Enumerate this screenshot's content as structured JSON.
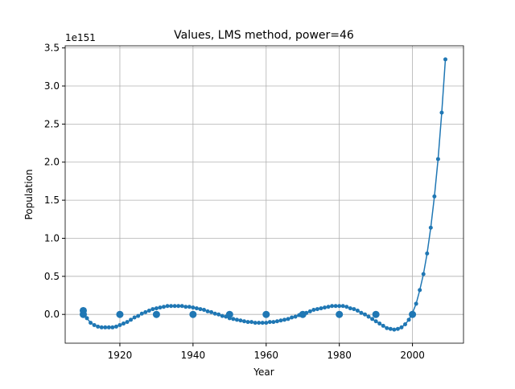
{
  "chart_data": {
    "type": "line",
    "title": "Values, LMS method, power=46",
    "x_label": "Year",
    "y_label": "Population",
    "y_offset_label": "1e151",
    "xlim": [
      1905.05,
      2013.95
    ],
    "ylim": [
      -0.378,
      3.528
    ],
    "xticks": [
      1920,
      1940,
      1960,
      1980,
      2000
    ],
    "yticks": [
      {
        "value": 0,
        "label": "0.0"
      },
      {
        "value": 0.5,
        "label": "0.5"
      },
      {
        "value": 1,
        "label": "1.0"
      },
      {
        "value": 1.5,
        "label": "1.5"
      },
      {
        "value": 2,
        "label": "2.0"
      },
      {
        "value": 2.5,
        "label": "2.5"
      },
      {
        "value": 3,
        "label": "3.0"
      },
      {
        "value": 3.5,
        "label": "3.5"
      }
    ],
    "grid": true,
    "series": [
      {
        "color": "#1f77b4",
        "style": "line",
        "x": [
          1910,
          1911,
          1912,
          1913,
          1914,
          1915,
          1916,
          1917,
          1918,
          1919,
          1920,
          1921,
          1922,
          1923,
          1924,
          1925,
          1926,
          1927,
          1928,
          1929,
          1930,
          1931,
          1932,
          1933,
          1934,
          1935,
          1936,
          1937,
          1938,
          1939,
          1940,
          1941,
          1942,
          1943,
          1944,
          1945,
          1946,
          1947,
          1948,
          1949,
          1950,
          1951,
          1952,
          1953,
          1954,
          1955,
          1956,
          1957,
          1958,
          1959,
          1960,
          1961,
          1962,
          1963,
          1964,
          1965,
          1966,
          1967,
          1968,
          1969,
          1970,
          1971,
          1972,
          1973,
          1974,
          1975,
          1976,
          1977,
          1978,
          1979,
          1980,
          1981,
          1982,
          1983,
          1984,
          1985,
          1986,
          1987,
          1988,
          1989,
          1990,
          1991,
          1992,
          1993,
          1994,
          1995,
          1996,
          1997,
          1998,
          1999,
          2000,
          2001,
          2002,
          2003,
          2004,
          2005,
          2006,
          2007,
          2008,
          2009
        ],
        "values": [
          0.04,
          -0.05,
          -0.11,
          -0.14,
          -0.16,
          -0.17,
          -0.17,
          -0.17,
          -0.17,
          -0.16,
          -0.14,
          -0.12,
          -0.1,
          -0.07,
          -0.04,
          -0.02,
          0.01,
          0.03,
          0.05,
          0.07,
          0.08,
          0.09,
          0.1,
          0.11,
          0.11,
          0.11,
          0.11,
          0.11,
          0.1,
          0.1,
          0.09,
          0.08,
          0.07,
          0.06,
          0.04,
          0.03,
          0.01,
          0.0,
          -0.02,
          -0.03,
          -0.05,
          -0.06,
          -0.07,
          -0.08,
          -0.09,
          -0.1,
          -0.1,
          -0.11,
          -0.11,
          -0.11,
          -0.11,
          -0.1,
          -0.1,
          -0.09,
          -0.08,
          -0.07,
          -0.06,
          -0.04,
          -0.03,
          -0.01,
          0.01,
          0.02,
          0.04,
          0.06,
          0.07,
          0.08,
          0.09,
          0.1,
          0.11,
          0.11,
          0.11,
          0.11,
          0.1,
          0.08,
          0.07,
          0.05,
          0.02,
          0.0,
          -0.03,
          -0.06,
          -0.09,
          -0.12,
          -0.15,
          -0.18,
          -0.19,
          -0.2,
          -0.19,
          -0.17,
          -0.13,
          -0.07,
          0.02,
          0.14,
          0.32,
          0.53,
          0.8,
          1.14,
          1.55,
          2.04,
          2.65,
          3.35
        ]
      },
      {
        "color": "#1f77b4",
        "style": "scatter",
        "x": [
          1910,
          1910,
          1920,
          1930,
          1940,
          1950,
          1960,
          1970,
          1980,
          1990,
          2000
        ],
        "values": [
          0.05,
          0,
          0,
          0,
          0,
          0,
          0,
          0,
          0,
          0,
          0
        ]
      }
    ]
  }
}
